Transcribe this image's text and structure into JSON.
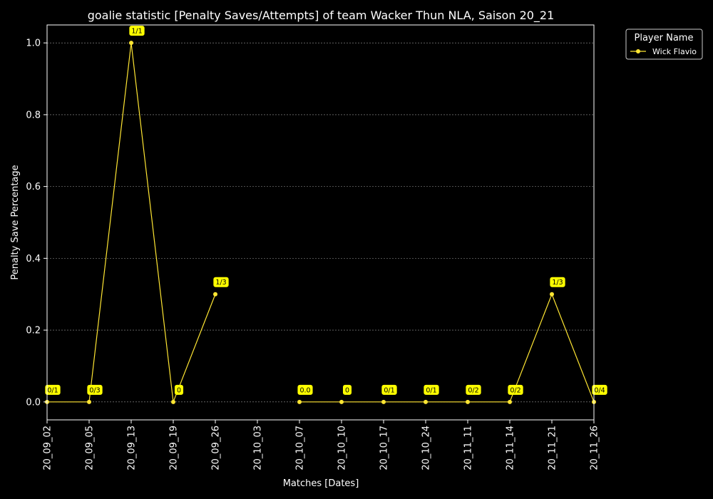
{
  "chart_data": {
    "type": "line",
    "title": "goalie statistic [Penalty Saves/Attempts] of team Wacker Thun NLA, Saison 20_21",
    "xlabel": "Matches [Dates]",
    "ylabel": "Penalty Save Percentage",
    "categories": [
      "20_09_02",
      "20_09_05",
      "20_09_13",
      "20_09_19",
      "20_09_26",
      "20_10_03",
      "20_10_07",
      "20_10_10",
      "20_10_17",
      "20_10_24",
      "20_11_11",
      "20_11_14",
      "20_11_21",
      "20_11_26"
    ],
    "ylim": [
      -0.05,
      1.05
    ],
    "yticks": [
      "0.0",
      "0.2",
      "0.4",
      "0.6",
      "0.8",
      "1.0"
    ],
    "grid": true,
    "legend": {
      "title": "Player Name",
      "placement": "top-right outside"
    },
    "series": [
      {
        "name": "Wick Flavio",
        "color": "#FFE633",
        "values": [
          0,
          0,
          1.0,
          0,
          0.3,
          null,
          0,
          0,
          0,
          0,
          0,
          0,
          0.3,
          0
        ],
        "labels": [
          "0/1",
          "0/3",
          "1/1",
          "0",
          "1/3",
          null,
          "0.0",
          "0",
          "0/1",
          "0/1",
          "0/2",
          "0/2",
          "1/3",
          "0/4"
        ]
      }
    ]
  }
}
